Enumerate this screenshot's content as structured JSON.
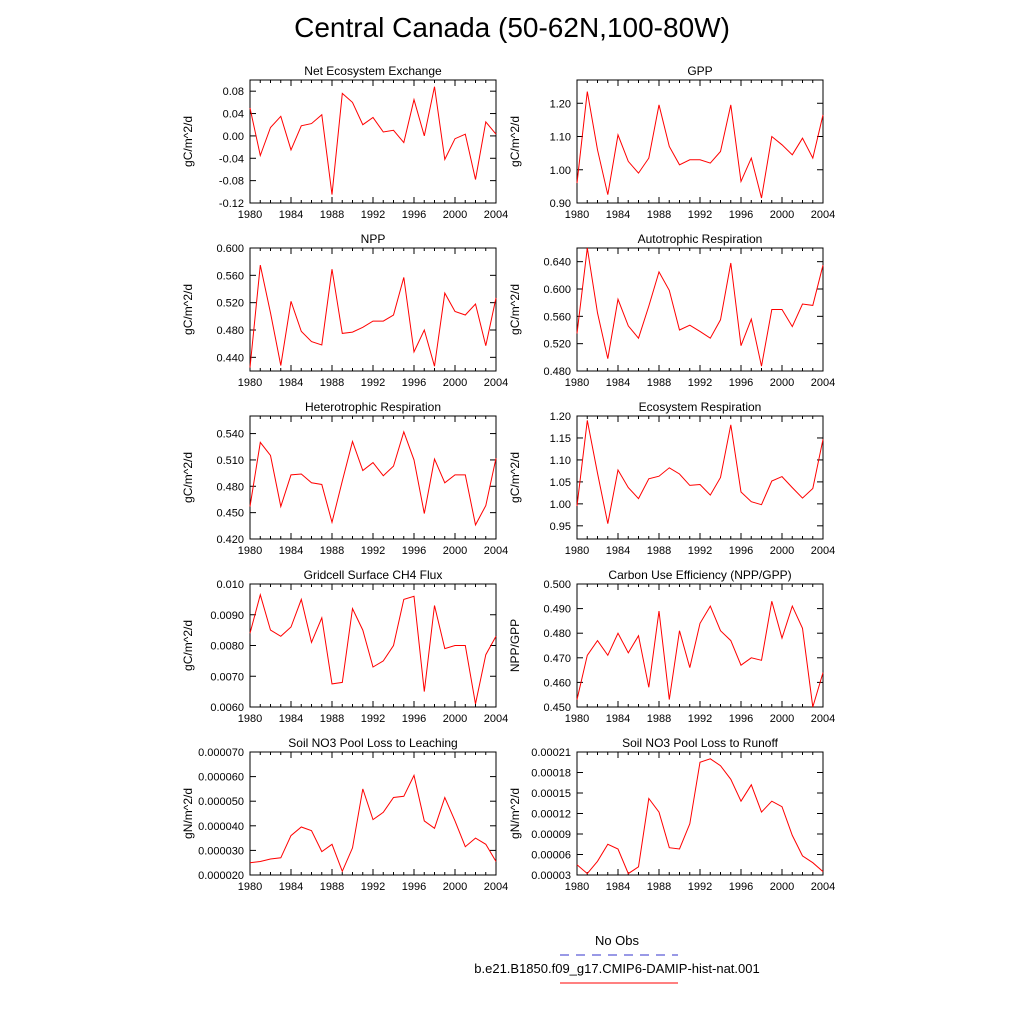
{
  "figure_title": "Central Canada (50-62N,100-80W)",
  "legend": {
    "obs_label": "No Obs",
    "obs_color": "#3333cc",
    "case_label": "b.e21.B1850.f09_g17.CMIP6-DAMIP-hist-nat.001",
    "case_color": "#ff0000"
  },
  "chart_data": [
    {
      "type": "line",
      "title": "Net Ecosystem Exchange",
      "ylabel": "gC/m^2/d",
      "xlim": [
        1980,
        2004
      ],
      "xticks": [
        "1980",
        "1984",
        "1988",
        "1992",
        "1996",
        "2000",
        "2004"
      ],
      "ylim": [
        -0.12,
        0.1
      ],
      "yticks": [
        "-0.12",
        "-0.08",
        "-0.04",
        "0.00",
        "0.04",
        "0.08"
      ],
      "x": [
        1980,
        1981,
        1982,
        1983,
        1984,
        1985,
        1986,
        1987,
        1988,
        1989,
        1990,
        1991,
        1992,
        1993,
        1994,
        1995,
        1996,
        1997,
        1998,
        1999,
        2000,
        2001,
        2002,
        2003,
        2004
      ],
      "series": [
        {
          "values": [
            0.05,
            -0.035,
            0.015,
            0.035,
            -0.025,
            0.018,
            0.022,
            0.038,
            -0.105,
            0.076,
            0.06,
            0.02,
            0.033,
            0.007,
            0.01,
            -0.012,
            0.065,
            0.0,
            0.088,
            -0.042,
            -0.005,
            0.003,
            -0.078,
            0.025,
            0.003
          ]
        }
      ]
    },
    {
      "type": "line",
      "title": "GPP",
      "ylabel": "gC/m^2/d",
      "xlim": [
        1980,
        2004
      ],
      "xticks": [
        "1980",
        "1984",
        "1988",
        "1992",
        "1996",
        "2000",
        "2004"
      ],
      "ylim": [
        0.9,
        1.27
      ],
      "yticks": [
        "0.90",
        "1.00",
        "1.10",
        "1.20"
      ],
      "x": [
        1980,
        1981,
        1982,
        1983,
        1984,
        1985,
        1986,
        1987,
        1988,
        1989,
        1990,
        1991,
        1992,
        1993,
        1994,
        1995,
        1996,
        1997,
        1998,
        1999,
        2000,
        2001,
        2002,
        2003,
        2004
      ],
      "series": [
        {
          "values": [
            0.96,
            1.235,
            1.06,
            0.925,
            1.105,
            1.025,
            0.99,
            1.035,
            1.195,
            1.07,
            1.015,
            1.03,
            1.03,
            1.02,
            1.055,
            1.195,
            0.965,
            1.035,
            0.915,
            1.1,
            1.075,
            1.045,
            1.095,
            1.035,
            1.165
          ]
        }
      ]
    },
    {
      "type": "line",
      "title": "NPP",
      "ylabel": "gC/m^2/d",
      "xlim": [
        1980,
        2004
      ],
      "xticks": [
        "1980",
        "1984",
        "1988",
        "1992",
        "1996",
        "2000",
        "2004"
      ],
      "ylim": [
        0.42,
        0.6
      ],
      "yticks": [
        "0.440",
        "0.480",
        "0.520",
        "0.560",
        "0.600"
      ],
      "x": [
        1980,
        1981,
        1982,
        1983,
        1984,
        1985,
        1986,
        1987,
        1988,
        1989,
        1990,
        1991,
        1992,
        1993,
        1994,
        1995,
        1996,
        1997,
        1998,
        1999,
        2000,
        2001,
        2002,
        2003,
        2004
      ],
      "series": [
        {
          "values": [
            0.425,
            0.575,
            0.505,
            0.428,
            0.522,
            0.478,
            0.463,
            0.458,
            0.569,
            0.475,
            0.477,
            0.484,
            0.493,
            0.493,
            0.502,
            0.557,
            0.448,
            0.48,
            0.427,
            0.534,
            0.507,
            0.502,
            0.518,
            0.457,
            0.527
          ]
        }
      ]
    },
    {
      "type": "line",
      "title": "Autotrophic Respiration",
      "ylabel": "gC/m^2/d",
      "xlim": [
        1980,
        2004
      ],
      "xticks": [
        "1980",
        "1984",
        "1988",
        "1992",
        "1996",
        "2000",
        "2004"
      ],
      "ylim": [
        0.48,
        0.66
      ],
      "yticks": [
        "0.480",
        "0.520",
        "0.560",
        "0.600",
        "0.640"
      ],
      "x": [
        1980,
        1981,
        1982,
        1983,
        1984,
        1985,
        1986,
        1987,
        1988,
        1989,
        1990,
        1991,
        1992,
        1993,
        1994,
        1995,
        1996,
        1997,
        1998,
        1999,
        2000,
        2001,
        2002,
        2003,
        2004
      ],
      "series": [
        {
          "values": [
            0.535,
            0.66,
            0.565,
            0.498,
            0.585,
            0.546,
            0.528,
            0.575,
            0.625,
            0.598,
            0.54,
            0.547,
            0.538,
            0.528,
            0.555,
            0.638,
            0.517,
            0.556,
            0.487,
            0.57,
            0.57,
            0.545,
            0.578,
            0.576,
            0.635
          ]
        }
      ]
    },
    {
      "type": "line",
      "title": "Heterotrophic Respiration",
      "ylabel": "gC/m^2/d",
      "xlim": [
        1980,
        2004
      ],
      "xticks": [
        "1980",
        "1984",
        "1988",
        "1992",
        "1996",
        "2000",
        "2004"
      ],
      "ylim": [
        0.42,
        0.56
      ],
      "yticks": [
        "0.420",
        "0.450",
        "0.480",
        "0.510",
        "0.540"
      ],
      "x": [
        1980,
        1981,
        1982,
        1983,
        1984,
        1985,
        1986,
        1987,
        1988,
        1989,
        1990,
        1991,
        1992,
        1993,
        1994,
        1995,
        1996,
        1997,
        1998,
        1999,
        2000,
        2001,
        2002,
        2003,
        2004
      ],
      "series": [
        {
          "values": [
            0.457,
            0.53,
            0.515,
            0.457,
            0.493,
            0.494,
            0.484,
            0.482,
            0.439,
            0.486,
            0.531,
            0.498,
            0.507,
            0.492,
            0.503,
            0.542,
            0.51,
            0.449,
            0.511,
            0.484,
            0.493,
            0.493,
            0.436,
            0.458,
            0.512
          ]
        }
      ]
    },
    {
      "type": "line",
      "title": "Ecosystem Respiration",
      "ylabel": "gC/m^2/d",
      "xlim": [
        1980,
        2004
      ],
      "xticks": [
        "1980",
        "1984",
        "1988",
        "1992",
        "1996",
        "2000",
        "2004"
      ],
      "ylim": [
        0.92,
        1.2
      ],
      "yticks": [
        "0.95",
        "1.00",
        "1.05",
        "1.10",
        "1.15",
        "1.20"
      ],
      "x": [
        1980,
        1981,
        1982,
        1983,
        1984,
        1985,
        1986,
        1987,
        1988,
        1989,
        1990,
        1991,
        1992,
        1993,
        1994,
        1995,
        1996,
        1997,
        1998,
        1999,
        2000,
        2001,
        2002,
        2003,
        2004
      ],
      "series": [
        {
          "values": [
            0.995,
            1.19,
            1.07,
            0.955,
            1.077,
            1.037,
            1.012,
            1.057,
            1.063,
            1.082,
            1.068,
            1.042,
            1.044,
            1.02,
            1.06,
            1.18,
            1.027,
            1.005,
            0.998,
            1.052,
            1.062,
            1.037,
            1.013,
            1.035,
            1.147
          ]
        }
      ]
    },
    {
      "type": "line",
      "title": "Gridcell Surface CH4 Flux",
      "ylabel": "gC/m^2/d",
      "xlim": [
        1980,
        2004
      ],
      "xticks": [
        "1980",
        "1984",
        "1988",
        "1992",
        "1996",
        "2000",
        "2004"
      ],
      "ylim": [
        0.006,
        0.01
      ],
      "yticks": [
        "0.0060",
        "0.0070",
        "0.0080",
        "0.0090",
        "0.010"
      ],
      "x": [
        1980,
        1981,
        1982,
        1983,
        1984,
        1985,
        1986,
        1987,
        1988,
        1989,
        1990,
        1991,
        1992,
        1993,
        1994,
        1995,
        1996,
        1997,
        1998,
        1999,
        2000,
        2001,
        2002,
        2003,
        2004
      ],
      "series": [
        {
          "values": [
            0.0084,
            0.00965,
            0.0085,
            0.0083,
            0.0086,
            0.0095,
            0.0081,
            0.0089,
            0.00675,
            0.0068,
            0.0092,
            0.0085,
            0.0073,
            0.0075,
            0.008,
            0.0095,
            0.0096,
            0.0065,
            0.0093,
            0.0079,
            0.008,
            0.008,
            0.0061,
            0.0077,
            0.0083
          ]
        }
      ]
    },
    {
      "type": "line",
      "title": "Carbon Use Efficiency (NPP/GPP)",
      "ylabel": "NPP/GPP",
      "xlim": [
        1980,
        2004
      ],
      "xticks": [
        "1980",
        "1984",
        "1988",
        "1992",
        "1996",
        "2000",
        "2004"
      ],
      "ylim": [
        0.45,
        0.5
      ],
      "yticks": [
        "0.450",
        "0.460",
        "0.470",
        "0.480",
        "0.490",
        "0.500"
      ],
      "x": [
        1980,
        1981,
        1982,
        1983,
        1984,
        1985,
        1986,
        1987,
        1988,
        1989,
        1990,
        1991,
        1992,
        1993,
        1994,
        1995,
        1996,
        1997,
        1998,
        1999,
        2000,
        2001,
        2002,
        2003,
        2004
      ],
      "series": [
        {
          "values": [
            0.453,
            0.471,
            0.477,
            0.471,
            0.48,
            0.472,
            0.479,
            0.458,
            0.489,
            0.453,
            0.481,
            0.466,
            0.484,
            0.491,
            0.481,
            0.477,
            0.467,
            0.47,
            0.469,
            0.493,
            0.478,
            0.491,
            0.482,
            0.45,
            0.464
          ]
        }
      ]
    },
    {
      "type": "line",
      "title": "Soil NO3 Pool Loss to Leaching",
      "ylabel": "gN/m^2/d",
      "xlim": [
        1980,
        2004
      ],
      "xticks": [
        "1980",
        "1984",
        "1988",
        "1992",
        "1996",
        "2000",
        "2004"
      ],
      "ylim": [
        2e-05,
        7e-05
      ],
      "yticks": [
        "0.000020",
        "0.000030",
        "0.000040",
        "0.000050",
        "0.000060",
        "0.000070"
      ],
      "x": [
        1980,
        1981,
        1982,
        1983,
        1984,
        1985,
        1986,
        1987,
        1988,
        1989,
        1990,
        1991,
        1992,
        1993,
        1994,
        1995,
        1996,
        1997,
        1998,
        1999,
        2000,
        2001,
        2002,
        2003,
        2004
      ],
      "series": [
        {
          "values": [
            2.5e-05,
            2.55e-05,
            2.65e-05,
            2.7e-05,
            3.6e-05,
            3.95e-05,
            3.8e-05,
            2.95e-05,
            3.25e-05,
            2.15e-05,
            3.1e-05,
            5.5e-05,
            4.25e-05,
            4.55e-05,
            5.15e-05,
            5.2e-05,
            6.05e-05,
            4.2e-05,
            3.9e-05,
            5.15e-05,
            4.2e-05,
            3.15e-05,
            3.5e-05,
            3.25e-05,
            2.55e-05
          ]
        }
      ]
    },
    {
      "type": "line",
      "title": "Soil NO3 Pool Loss to Runoff",
      "ylabel": "gN/m^2/d",
      "xlim": [
        1980,
        2004
      ],
      "xticks": [
        "1980",
        "1984",
        "1988",
        "1992",
        "1996",
        "2000",
        "2004"
      ],
      "ylim": [
        3e-05,
        0.00021
      ],
      "yticks": [
        "0.00003",
        "0.00006",
        "0.00009",
        "0.00012",
        "0.00015",
        "0.00018",
        "0.00021"
      ],
      "x": [
        1980,
        1981,
        1982,
        1983,
        1984,
        1985,
        1986,
        1987,
        1988,
        1989,
        1990,
        1991,
        1992,
        1993,
        1994,
        1995,
        1996,
        1997,
        1998,
        1999,
        2000,
        2001,
        2002,
        2003,
        2004
      ],
      "series": [
        {
          "values": [
            4.5e-05,
            3.2e-05,
            5e-05,
            7.5e-05,
            6.8e-05,
            3.2e-05,
            4.2e-05,
            0.000142,
            0.000122,
            7e-05,
            6.8e-05,
            0.000105,
            0.000195,
            0.0002,
            0.00019,
            0.00017,
            0.000138,
            0.000162,
            0.000122,
            0.000138,
            0.00013,
            8.8e-05,
            5.8e-05,
            4.8e-05,
            3.5e-05
          ]
        }
      ]
    }
  ]
}
